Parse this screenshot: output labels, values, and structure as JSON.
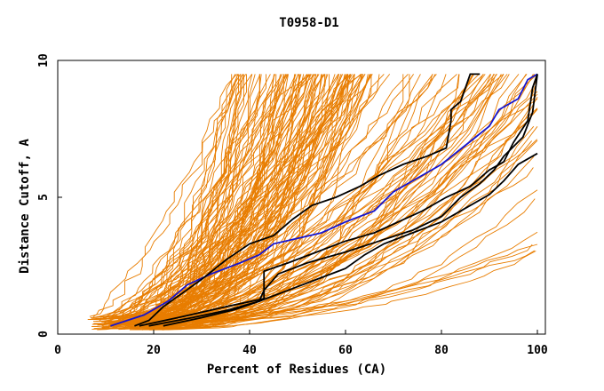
{
  "chart_data": {
    "type": "line",
    "title": "T0958-D1",
    "xlabel": "Percent of Residues (CA)",
    "ylabel": "Distance Cutoff, A",
    "xlim": [
      0,
      100
    ],
    "ylim": [
      0,
      10
    ],
    "x_ticks": [
      "0",
      "20",
      "40",
      "60",
      "80",
      "100"
    ],
    "y_ticks": [
      "0",
      "5",
      "10"
    ],
    "grid": false,
    "colors": {
      "background_series": "#e87d00",
      "highlight_blue": "#1414d2",
      "highlight_black": "#000000"
    },
    "highlight_series": [
      {
        "color": "blue",
        "points": [
          [
            11,
            0.3
          ],
          [
            18,
            0.7
          ],
          [
            23,
            1.2
          ],
          [
            27,
            1.8
          ],
          [
            32,
            2.2
          ],
          [
            38,
            2.6
          ],
          [
            42,
            2.9
          ],
          [
            45,
            3.3
          ],
          [
            50,
            3.5
          ],
          [
            55,
            3.7
          ],
          [
            60,
            4.1
          ],
          [
            66,
            4.5
          ],
          [
            70,
            5.2
          ],
          [
            75,
            5.7
          ],
          [
            80,
            6.2
          ],
          [
            85,
            6.9
          ],
          [
            90,
            7.6
          ],
          [
            92,
            8.2
          ],
          [
            96,
            8.6
          ],
          [
            98,
            9.3
          ],
          [
            100,
            9.5
          ]
        ]
      },
      {
        "color": "black",
        "points": [
          [
            16,
            0.3
          ],
          [
            19,
            0.5
          ],
          [
            22,
            1.0
          ],
          [
            26,
            1.5
          ],
          [
            30,
            2.0
          ],
          [
            35,
            2.7
          ],
          [
            40,
            3.3
          ],
          [
            45,
            3.6
          ],
          [
            49,
            4.2
          ],
          [
            53,
            4.7
          ],
          [
            58,
            5.0
          ],
          [
            63,
            5.4
          ],
          [
            67,
            5.8
          ],
          [
            72,
            6.2
          ],
          [
            77,
            6.5
          ],
          [
            81,
            6.8
          ],
          [
            82,
            7.8
          ],
          [
            82,
            8.2
          ],
          [
            84,
            8.5
          ],
          [
            86,
            9.5
          ],
          [
            88,
            9.5
          ]
        ]
      },
      {
        "color": "black",
        "points": [
          [
            17,
            0.3
          ],
          [
            25,
            0.6
          ],
          [
            35,
            1.0
          ],
          [
            43,
            1.3
          ],
          [
            43,
            2.3
          ],
          [
            48,
            2.6
          ],
          [
            54,
            3.0
          ],
          [
            60,
            3.4
          ],
          [
            66,
            3.7
          ],
          [
            71,
            4.1
          ],
          [
            76,
            4.5
          ],
          [
            81,
            5.0
          ],
          [
            86,
            5.4
          ],
          [
            90,
            6.0
          ],
          [
            93,
            6.3
          ],
          [
            95,
            7.0
          ],
          [
            98,
            7.8
          ],
          [
            99,
            9.0
          ],
          [
            100,
            9.5
          ]
        ]
      },
      {
        "color": "black",
        "points": [
          [
            19,
            0.3
          ],
          [
            28,
            0.6
          ],
          [
            36,
            0.9
          ],
          [
            42,
            1.2
          ],
          [
            43,
            1.6
          ],
          [
            46,
            2.2
          ],
          [
            52,
            2.6
          ],
          [
            60,
            3.0
          ],
          [
            67,
            3.4
          ],
          [
            74,
            3.8
          ],
          [
            80,
            4.3
          ],
          [
            84,
            5.0
          ],
          [
            88,
            5.5
          ],
          [
            91,
            6.0
          ],
          [
            93,
            6.5
          ],
          [
            97,
            7.2
          ],
          [
            99,
            8.1
          ],
          [
            100,
            9.5
          ]
        ]
      },
      {
        "color": "black",
        "points": [
          [
            22,
            0.3
          ],
          [
            30,
            0.6
          ],
          [
            37,
            0.9
          ],
          [
            42,
            1.2
          ],
          [
            48,
            1.6
          ],
          [
            54,
            2.0
          ],
          [
            60,
            2.4
          ],
          [
            64,
            2.9
          ],
          [
            68,
            3.3
          ],
          [
            74,
            3.7
          ],
          [
            80,
            4.1
          ],
          [
            85,
            4.6
          ],
          [
            90,
            5.1
          ],
          [
            93,
            5.6
          ],
          [
            96,
            6.2
          ],
          [
            100,
            6.6
          ]
        ]
      }
    ]
  }
}
